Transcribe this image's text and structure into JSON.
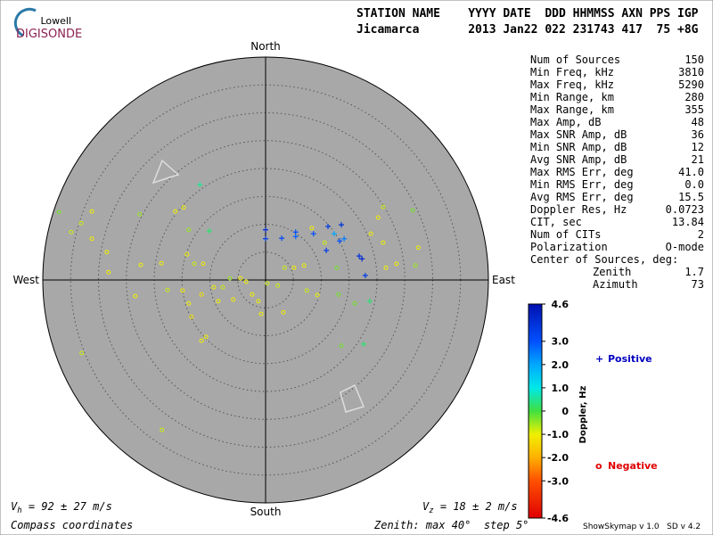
{
  "logo": {
    "top": "Lowell",
    "bottom": "DIGISONDE"
  },
  "header": {
    "line1": "STATION NAME    YYYY DATE  DDD HHMMSS AXN PPS IGP",
    "line2": "Jicamarca       2013 Jan22 022 231743 417  75 +8G"
  },
  "stats": [
    [
      "Num of Sources",
      "150"
    ],
    [
      "Min Freq, kHz",
      "3810"
    ],
    [
      "Max Freq, kHz",
      "5290"
    ],
    [
      "Min Range, km",
      "280"
    ],
    [
      "Max Range, km",
      "355"
    ],
    [
      "Max Amp, dB",
      "48"
    ],
    [
      "Max SNR Amp, dB",
      "36"
    ],
    [
      "Min SNR Amp, dB",
      "12"
    ],
    [
      "Avg SNR Amp, dB",
      "21"
    ],
    [
      "Max RMS Err, deg",
      "41.0"
    ],
    [
      "Min RMS Err, deg",
      "0.0"
    ],
    [
      "Avg RMS Err, deg",
      "15.5"
    ],
    [
      "Doppler Res, Hz",
      "0.0723"
    ],
    [
      "CIT, sec",
      "13.84"
    ],
    [
      "Num of CITs",
      "2"
    ],
    [
      "Polarization",
      "O-mode"
    ]
  ],
  "center": {
    "title": "Center of Sources, deg:",
    "rows": [
      [
        "Zenith",
        "1.7"
      ],
      [
        "Azimuth",
        "73"
      ]
    ]
  },
  "footer": {
    "vh_symbol": "V",
    "vh_sub": "h",
    "vh_text": " = 92 ± 27 m/s",
    "vz_symbol": "V",
    "vz_sub": "z",
    "vz_text": " = 18 ± 2 m/s",
    "coords": "Compass coordinates",
    "zenith": "Zenith: max 40°  step 5°",
    "version": "ShowSkymap v 1.0   SD v 4.2"
  },
  "chart_data": {
    "type": "skymap",
    "directions": {
      "north": "North",
      "south": "South",
      "east": "East",
      "west": "West"
    },
    "rlim": [
      0,
      40
    ],
    "rticks": [
      5,
      10,
      15,
      20,
      25,
      30,
      35,
      40
    ],
    "colorbar": {
      "title": "Doppler, Hz",
      "ticks": [
        4.6,
        {
          "value": 3,
          "label": "3.0"
        },
        {
          "value": 2,
          "label": "2.0"
        },
        {
          "value": 1,
          "label": "1.0"
        },
        0,
        {
          "value": -1,
          "label": "-1.0"
        },
        {
          "value": -2,
          "label": "-2.0"
        },
        {
          "value": -3,
          "label": "-3.0"
        },
        -4.6
      ],
      "colors": [
        "#0010b0",
        "#0050ff",
        "#00a8ff",
        "#00e8e8",
        "#40e040",
        "#f0f000",
        "#ffb000",
        "#ff5000",
        "#e00000"
      ]
    },
    "series": [
      {
        "name": "Positive",
        "marker": "+",
        "legend_color": "#0000c0",
        "x": [
          0,
          0,
          2.9,
          5.4,
          5.4,
          8.6,
          11.2,
          12.3,
          13.6,
          14.1,
          13.3,
          10.9,
          16.8,
          17.3,
          17.9,
          -10.1,
          -11.8,
          18.7,
          17.6
        ],
        "y": [
          9.0,
          7.4,
          7.5,
          8.6,
          7.8,
          8.3,
          9.6,
          8.3,
          9.9,
          7.4,
          7.0,
          5.3,
          4.3,
          3.8,
          0.8,
          8.8,
          17.1,
          -3.8,
          -11.5
        ],
        "doppler": [
          4.0,
          3.5,
          3.2,
          3.0,
          2.8,
          3.0,
          3.5,
          2.0,
          3.8,
          2.5,
          3.0,
          3.5,
          3.8,
          4.0,
          3.5,
          0.3,
          0.5,
          0.3,
          0.3
        ]
      },
      {
        "name": "Negative",
        "marker": "o",
        "legend_color": "#e00000",
        "x": [
          -37.1,
          -34.9,
          -33.1,
          -31.2,
          -31.2,
          -33.0,
          -28.5,
          -28.2,
          -22.6,
          -22.4,
          -23.4,
          -18.7,
          -18.6,
          -16.2,
          -14.7,
          -13.8,
          -14.1,
          -12.8,
          -11.2,
          -11.5,
          -14.9,
          -13.8,
          -13.3,
          -10.7,
          -11.5,
          -9.3,
          -8.5,
          -6.4,
          -5.8,
          -4.5,
          -3.5,
          -2.4,
          -1.3,
          -0.8,
          0.3,
          2.2,
          3.2,
          3.4,
          5.1,
          6.9,
          7.4,
          9.3,
          8.3,
          10.6,
          12.8,
          13.1,
          16.0,
          13.6,
          18.9,
          20.2,
          21.1,
          21.1,
          21.6,
          23.5,
          26.4,
          27.4,
          26.9,
          -17.6,
          -7.7
        ],
        "y": [
          12.2,
          8.6,
          10.2,
          12.3,
          7.4,
          -13.1,
          5.0,
          1.4,
          11.8,
          2.7,
          -2.9,
          3.0,
          -26.9,
          12.3,
          13.0,
          9.0,
          4.6,
          2.9,
          2.9,
          -2.6,
          -1.9,
          -4.2,
          -6.6,
          -10.2,
          -10.9,
          -1.3,
          -3.8,
          0.3,
          -3.5,
          0.3,
          -0.3,
          -2.6,
          -3.8,
          -6.1,
          -0.6,
          -1.0,
          -5.8,
          2.2,
          2.2,
          2.6,
          -1.9,
          -2.7,
          9.3,
          6.7,
          2.2,
          -2.6,
          -4.2,
          -11.8,
          8.3,
          11.2,
          13.1,
          6.7,
          2.2,
          2.9,
          12.5,
          5.8,
          2.6,
          -1.8,
          -1.3
        ],
        "doppler": [
          -0.3,
          -0.8,
          -0.8,
          -1.0,
          -1.0,
          -0.8,
          -1.0,
          -1.0,
          -0.5,
          -1.0,
          -1.0,
          -1.0,
          -0.8,
          -1.0,
          -1.0,
          -0.5,
          -1.0,
          -0.8,
          -1.0,
          -1.2,
          -1.0,
          -1.0,
          -1.2,
          -1.0,
          -1.0,
          -1.0,
          -1.0,
          -0.5,
          -1.0,
          -1.0,
          -1.0,
          -1.0,
          -1.0,
          -1.0,
          -0.8,
          -0.8,
          -1.0,
          -0.8,
          -1.0,
          -1.0,
          -0.8,
          -1.0,
          -1.0,
          -0.8,
          -0.3,
          -0.3,
          -0.3,
          -0.3,
          -1.0,
          -1.0,
          -0.8,
          -1.0,
          -1.0,
          -1.0,
          -0.3,
          -1.0,
          -0.5,
          -0.8,
          -0.8
        ]
      }
    ]
  }
}
